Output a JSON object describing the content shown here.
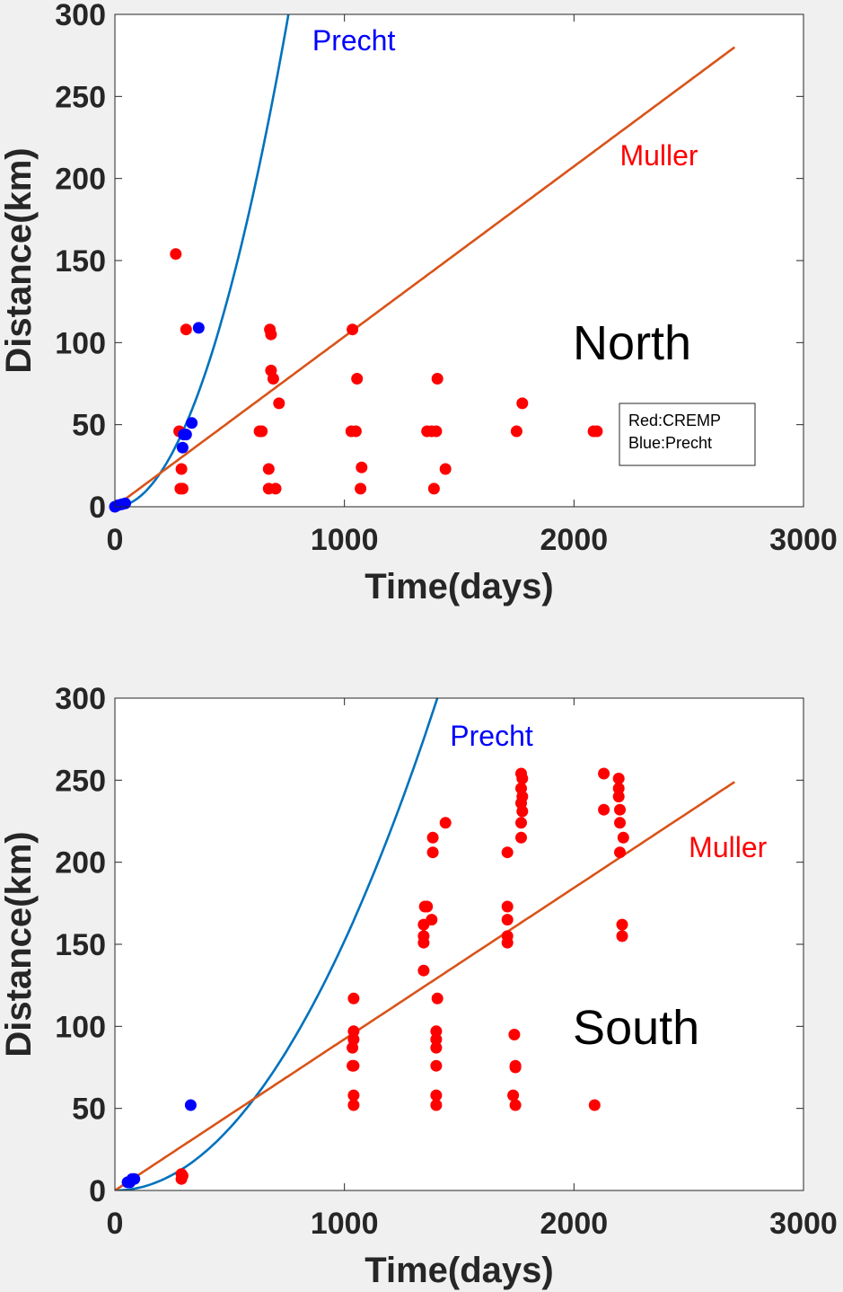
{
  "chart_data": [
    {
      "type": "scatter",
      "xlabel": "Time(days)",
      "ylabel": "Distance(km)",
      "xlim": [
        0,
        3000
      ],
      "ylim": [
        0,
        300
      ],
      "xticks": [
        "0",
        "1000",
        "2000",
        "3000"
      ],
      "yticks": [
        "0",
        "50",
        "100",
        "150",
        "200",
        "250",
        "300"
      ],
      "grid": false,
      "region_label": "North",
      "legend_lines": [
        "Red:CREMP",
        "Blue:Precht"
      ],
      "legend_placement": "right",
      "colors": {
        "cremp": "#ff0000",
        "precht_points": "#0000ff",
        "precht_curve": "#0072bd",
        "muller_line": "#d95319"
      },
      "curves": [
        {
          "label": "Precht",
          "kind": "quadratic",
          "coef": 0.000525,
          "x_end": 3000,
          "color": "#0072bd"
        },
        {
          "label": "Muller",
          "kind": "linear",
          "slope": 0.1037,
          "intercept": 0,
          "x_end": 2700,
          "color": "#d95319"
        }
      ],
      "annotations": [
        {
          "text": "Precht",
          "color": "#0000ff",
          "x": 860,
          "y": 278
        },
        {
          "text": "Muller",
          "color": "#ff0000",
          "x": 2200,
          "y": 208
        }
      ],
      "series": [
        {
          "name": "CREMP",
          "color": "#ff0000",
          "points": [
            [
              265,
              154
            ],
            [
              310,
              108
            ],
            [
              280,
              46
            ],
            [
              290,
              23
            ],
            [
              285,
              11
            ],
            [
              295,
              11
            ],
            [
              675,
              108
            ],
            [
              680,
              105
            ],
            [
              680,
              83
            ],
            [
              690,
              78
            ],
            [
              715,
              63
            ],
            [
              630,
              46
            ],
            [
              640,
              46
            ],
            [
              670,
              23
            ],
            [
              670,
              11
            ],
            [
              700,
              11
            ],
            [
              1035,
              108
            ],
            [
              1055,
              78
            ],
            [
              1030,
              46
            ],
            [
              1050,
              46
            ],
            [
              1075,
              24
            ],
            [
              1070,
              11
            ],
            [
              1405,
              78
            ],
            [
              1360,
              46
            ],
            [
              1380,
              46
            ],
            [
              1400,
              46
            ],
            [
              1440,
              23
            ],
            [
              1390,
              11
            ],
            [
              1775,
              63
            ],
            [
              1750,
              46
            ],
            [
              2085,
              46
            ],
            [
              2100,
              46
            ]
          ]
        },
        {
          "name": "Precht",
          "color": "#0000ff",
          "points": [
            [
              365,
              109
            ],
            [
              335,
              51
            ],
            [
              300,
              44
            ],
            [
              310,
              44
            ],
            [
              295,
              36
            ],
            [
              0,
              0
            ],
            [
              15,
              1
            ],
            [
              30,
              1.5
            ],
            [
              45,
              2
            ]
          ]
        }
      ]
    },
    {
      "type": "scatter",
      "xlabel": "Time(days)",
      "ylabel": "Distance(km)",
      "xlim": [
        0,
        3000
      ],
      "ylim": [
        0,
        300
      ],
      "xticks": [
        "0",
        "1000",
        "2000",
        "3000"
      ],
      "yticks": [
        "0",
        "50",
        "100",
        "150",
        "200",
        "250",
        "300"
      ],
      "grid": false,
      "region_label": "South",
      "colors": {
        "cremp": "#ff0000",
        "precht_points": "#0000ff",
        "precht_curve": "#0072bd",
        "muller_line": "#d95319"
      },
      "curves": [
        {
          "label": "Precht",
          "kind": "quadratic",
          "coef": 0.000152,
          "x_end": 3000,
          "color": "#0072bd"
        },
        {
          "label": "Muller",
          "kind": "linear",
          "slope": 0.0922,
          "intercept": 0,
          "x_end": 2700,
          "color": "#d95319"
        }
      ],
      "annotations": [
        {
          "text": "Precht",
          "color": "#0000ff",
          "x": 1460,
          "y": 271
        },
        {
          "text": "Muller",
          "color": "#ff0000",
          "x": 2500,
          "y": 203
        }
      ],
      "series": [
        {
          "name": "CREMP",
          "color": "#ff0000",
          "points": [
            [
              290,
              10
            ],
            [
              290,
              7
            ],
            [
              295,
              9
            ],
            [
              1040,
              117
            ],
            [
              1040,
              97
            ],
            [
              1040,
              92
            ],
            [
              1035,
              87
            ],
            [
              1040,
              76
            ],
            [
              1035,
              76
            ],
            [
              1040,
              58
            ],
            [
              1040,
              52
            ],
            [
              1360,
              173
            ],
            [
              1350,
              173
            ],
            [
              1345,
              162
            ],
            [
              1345,
              155
            ],
            [
              1345,
              151
            ],
            [
              1345,
              134
            ],
            [
              1385,
              215
            ],
            [
              1385,
              206
            ],
            [
              1380,
              165
            ],
            [
              1405,
              117
            ],
            [
              1400,
              97
            ],
            [
              1400,
              92
            ],
            [
              1400,
              87
            ],
            [
              1400,
              76
            ],
            [
              1400,
              58
            ],
            [
              1400,
              52
            ],
            [
              1440,
              224
            ],
            [
              1710,
              206
            ],
            [
              1710,
              173
            ],
            [
              1710,
              165
            ],
            [
              1710,
              155
            ],
            [
              1710,
              151
            ],
            [
              1740,
              95
            ],
            [
              1745,
              76
            ],
            [
              1745,
              75
            ],
            [
              1735,
              58
            ],
            [
              1745,
              52
            ],
            [
              1770,
              254
            ],
            [
              1775,
              251
            ],
            [
              1770,
              245
            ],
            [
              1775,
              240
            ],
            [
              1770,
              236
            ],
            [
              1775,
              231
            ],
            [
              1770,
              224
            ],
            [
              1770,
              215
            ],
            [
              2090,
              52
            ],
            [
              2130,
              254
            ],
            [
              2130,
              232
            ],
            [
              2195,
              251
            ],
            [
              2195,
              245
            ],
            [
              2195,
              240
            ],
            [
              2200,
              232
            ],
            [
              2200,
              224
            ],
            [
              2215,
              215
            ],
            [
              2200,
              206
            ],
            [
              2210,
              162
            ],
            [
              2210,
              155
            ]
          ]
        },
        {
          "name": "Precht",
          "color": "#0000ff",
          "points": [
            [
              330,
              52
            ],
            [
              55,
              5
            ],
            [
              65,
              5
            ],
            [
              75,
              7
            ],
            [
              85,
              7
            ]
          ]
        }
      ]
    }
  ]
}
